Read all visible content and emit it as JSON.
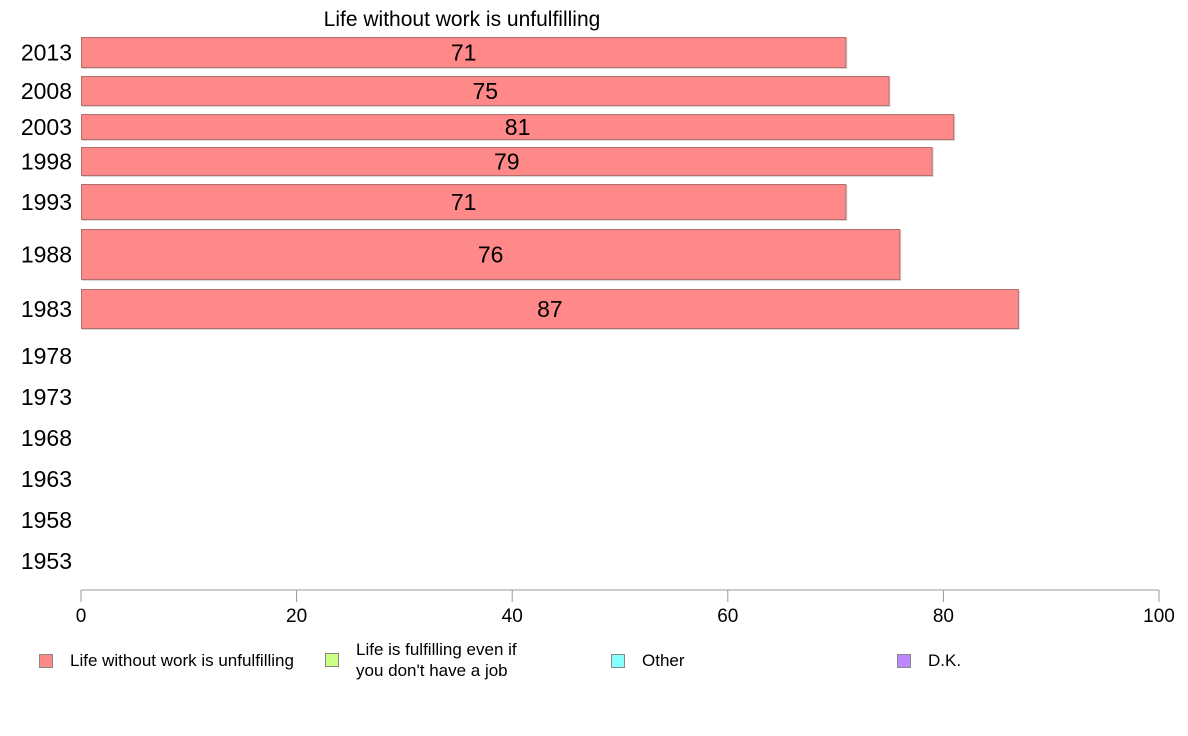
{
  "chart_data": {
    "type": "bar",
    "orientation": "horizontal",
    "title": "Life without work is unfulfilling",
    "xlabel": "",
    "ylabel": "",
    "xlim": [
      0,
      100
    ],
    "x_ticks": [
      0,
      20,
      40,
      60,
      80,
      100
    ],
    "categories": [
      "2013",
      "2008",
      "2003",
      "1998",
      "1993",
      "1988",
      "1983",
      "1978",
      "1973",
      "1968",
      "1963",
      "1958",
      "1953"
    ],
    "series": [
      {
        "name": "Life without work is unfulfilling",
        "color": "#ff8888",
        "values": [
          71,
          75,
          81,
          79,
          71,
          76,
          87,
          null,
          null,
          null,
          null,
          null,
          null
        ]
      }
    ],
    "data_labels": [
      "71",
      "75",
      "81",
      "79",
      "71",
      "76",
      "87"
    ],
    "grid": false,
    "legend_position": "bottom",
    "legend": [
      {
        "label": "Life without work is unfulfilling",
        "color": "#ff8888"
      },
      {
        "label_line1": "Life is fulfilling even if",
        "label_line2": "you don't have a job",
        "color": "#ccff88"
      },
      {
        "label": "Other",
        "color": "#88ffff"
      },
      {
        "label": "D.K.",
        "color": "#bb88ff"
      }
    ]
  }
}
